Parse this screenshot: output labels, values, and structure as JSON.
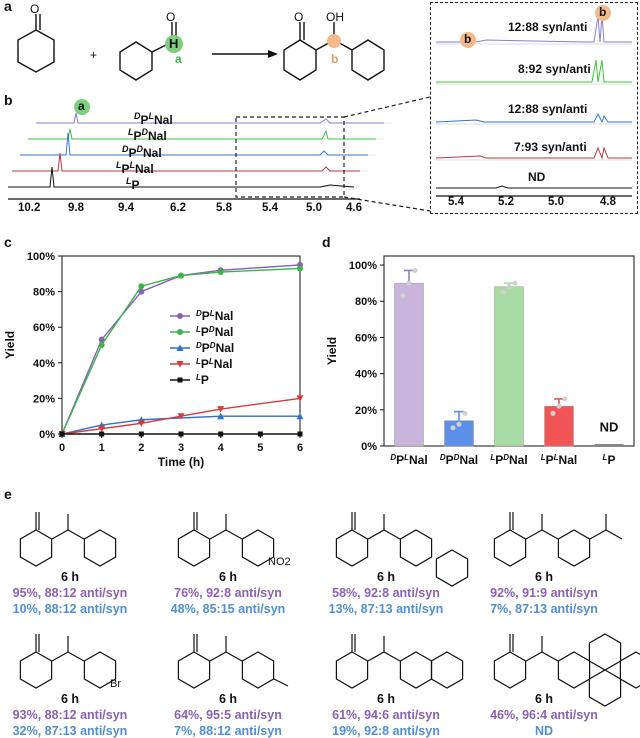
{
  "panel_labels": {
    "a": "a",
    "b": "b",
    "c": "c",
    "d": "d",
    "e": "e"
  },
  "scheme": {
    "oh": "OH",
    "plus": "+",
    "h_atom": "H",
    "a_marker": "a",
    "b_marker": "b",
    "ratio_b": "b"
  },
  "spectra": {
    "inset_labels": [
      "12:88 syn/anti",
      "8:92 syn/anti",
      "12:88 syn/anti",
      "7:93 syn/anti",
      "ND"
    ],
    "inset_colors": [
      "#8a7fd0",
      "#3bc43b",
      "#2f78c9",
      "#b83a3a",
      "#111111"
    ],
    "inset_ticks": [
      "5.4",
      "5.2",
      "5.0",
      "4.8"
    ],
    "b_ticks": [
      "10.2",
      "9.8",
      "9.4",
      "6.2",
      "5.8",
      "5.4",
      "5.0",
      "4.6"
    ],
    "traces": [
      {
        "sup": "D",
        "base": "P",
        "sup2": "L",
        "tail": "Nal",
        "color": "#8a7fd0"
      },
      {
        "sup": "L",
        "base": "P",
        "sup2": "D",
        "tail": "Nal",
        "color": "#3bc43b"
      },
      {
        "sup": "D",
        "base": "P",
        "sup2": "D",
        "tail": "Nal",
        "color": "#2f78c9"
      },
      {
        "sup": "L",
        "base": "P",
        "sup2": "L",
        "tail": "Nal",
        "color": "#b83a3a"
      },
      {
        "sup": "L",
        "base": "P",
        "sup2": "",
        "tail": "",
        "color": "#111111"
      }
    ]
  },
  "chart_data": [
    {
      "type": "line",
      "xlabel": "Time (h)",
      "ylabel": "Yield",
      "x": [
        0,
        1,
        2,
        3,
        4,
        5,
        6
      ],
      "x_ticks": [
        "0",
        "1",
        "2",
        "3",
        "4",
        "5",
        "6"
      ],
      "y_ticks": [
        "0%",
        "20%",
        "40%",
        "60%",
        "80%",
        "100%"
      ],
      "xlim": [
        0,
        6
      ],
      "ylim": [
        0,
        100
      ],
      "legend_position": "center-right",
      "series": [
        {
          "name": "DPLNal",
          "sup": "D",
          "sup2": "L",
          "color": "#8a62b3",
          "marker": "circle",
          "x": [
            0,
            1,
            2,
            3,
            4,
            6
          ],
          "values": [
            0,
            53,
            80,
            89,
            92,
            95
          ]
        },
        {
          "name": "LPDNal",
          "sup": "L",
          "sup2": "D",
          "color": "#3cb44b",
          "marker": "circle",
          "x": [
            0,
            1,
            2,
            3,
            4,
            6
          ],
          "values": [
            0,
            50,
            83,
            89,
            91,
            93
          ]
        },
        {
          "name": "DPDNal",
          "sup": "D",
          "sup2": "D",
          "color": "#2f6fd0",
          "marker": "triangle-up",
          "x": [
            0,
            1,
            2,
            4,
            6
          ],
          "values": [
            0,
            5,
            8,
            10,
            10
          ]
        },
        {
          "name": "LPLNal",
          "sup": "L",
          "sup2": "L",
          "color": "#d83a3a",
          "marker": "triangle-down",
          "x": [
            0,
            1,
            2,
            3,
            4,
            6
          ],
          "values": [
            0,
            3,
            6,
            10,
            14,
            20
          ]
        },
        {
          "name": "LP",
          "sup": "L",
          "sup2": "",
          "color": "#111111",
          "marker": "square",
          "x": [
            0,
            1,
            2,
            3,
            4,
            5,
            6
          ],
          "values": [
            0,
            0,
            0,
            0,
            0,
            0,
            0
          ]
        }
      ]
    },
    {
      "type": "bar",
      "ylabel": "Yield",
      "y_ticks": [
        "0%",
        "20%",
        "40%",
        "60%",
        "80%",
        "100%"
      ],
      "ylim": [
        0,
        105
      ],
      "categories": [
        "DPLNal",
        "DPDNal",
        "LPDNal",
        "LPLNal",
        "LP"
      ],
      "cat_parts": [
        [
          "D",
          "L",
          "Nal"
        ],
        [
          "D",
          "D",
          "Nal"
        ],
        [
          "L",
          "D",
          "Nal"
        ],
        [
          "L",
          "L",
          "Nal"
        ],
        [
          "L",
          "",
          ""
        ]
      ],
      "values": [
        90,
        14,
        88,
        22,
        0
      ],
      "errors": [
        7,
        5,
        2,
        4,
        0
      ],
      "colors": [
        "#c9b4dc",
        "#5b8fe8",
        "#a9dca4",
        "#f25555",
        "#888888"
      ],
      "points": [
        [
          83,
          90,
          97
        ],
        [
          10,
          12,
          18
        ],
        [
          85,
          88,
          90
        ],
        [
          18,
          22,
          26
        ],
        [
          0,
          0,
          0
        ]
      ],
      "annotation": "ND"
    }
  ],
  "compounds": [
    {
      "time": "6 h",
      "line1": "95%, 88:12 anti/syn",
      "line2": "10%, 88:12 anti/syn",
      "sub": ""
    },
    {
      "time": "6 h",
      "line1": "76%, 92:8 anti/syn",
      "line2": "48%, 85:15 anti/syn",
      "sub": "NO2"
    },
    {
      "time": "6 h",
      "line1": "58%, 92:8 anti/syn",
      "line2": "13%, 87:13 anti/syn",
      "sub": ""
    },
    {
      "time": "6 h",
      "line1": "92%, 91:9 anti/syn",
      "line2": "7%, 87:13 anti/syn",
      "sub": ""
    },
    {
      "time": "6 h",
      "line1": "93%, 88:12 anti/syn",
      "line2": "32%, 87:13 anti/syn",
      "sub": "Br"
    },
    {
      "time": "6 h",
      "line1": "64%, 95:5 anti/syn",
      "line2": "7%, 88:12 anti/syn",
      "sub": ""
    },
    {
      "time": "6 h",
      "line1": "61%, 94:6 anti/syn",
      "line2": "19%, 92:8 anti/syn",
      "sub": ""
    },
    {
      "time": "6 h",
      "line1": "46%, 96:4 anti/syn",
      "line2": "ND",
      "sub": ""
    }
  ]
}
